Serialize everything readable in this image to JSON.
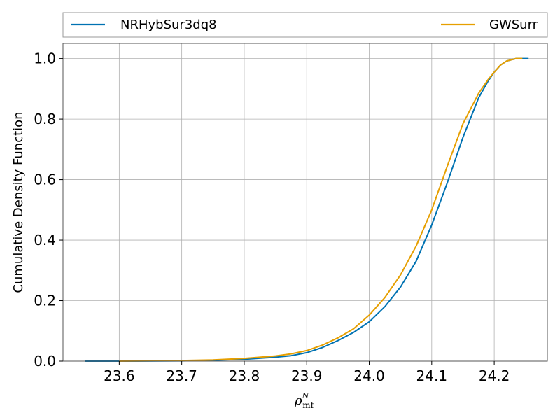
{
  "chart_data": {
    "type": "line",
    "title": "",
    "xlabel": {
      "base": "ρ",
      "sup": "N",
      "sub": "mf"
    },
    "ylabel": "Cumulative Density Function",
    "xlim": [
      23.51,
      24.285
    ],
    "ylim": [
      0.0,
      1.05
    ],
    "xticks": [
      23.6,
      23.7,
      23.8,
      23.9,
      24.0,
      24.1,
      24.2
    ],
    "xtick_labels": [
      "23.6",
      "23.7",
      "23.8",
      "23.9",
      "24.0",
      "24.1",
      "24.2"
    ],
    "yticks": [
      0.0,
      0.2,
      0.4,
      0.6,
      0.8,
      1.0
    ],
    "ytick_labels": [
      "0.0",
      "0.2",
      "0.4",
      "0.6",
      "0.8",
      "1.0"
    ],
    "grid": true,
    "legend_placement": "top, above plot",
    "series": [
      {
        "name": "NRHybSur3dq8",
        "color": "#0072b2",
        "x": [
          23.545,
          23.6,
          23.7,
          23.75,
          23.8,
          23.85,
          23.875,
          23.9,
          23.925,
          23.95,
          23.975,
          24.0,
          24.025,
          24.05,
          24.075,
          24.1,
          24.125,
          24.15,
          24.175,
          24.19,
          24.2,
          24.21,
          24.22,
          24.235,
          24.255
        ],
        "y": [
          0.0,
          0.0,
          0.001,
          0.003,
          0.006,
          0.013,
          0.018,
          0.028,
          0.045,
          0.068,
          0.095,
          0.13,
          0.18,
          0.245,
          0.33,
          0.45,
          0.59,
          0.74,
          0.87,
          0.925,
          0.955,
          0.978,
          0.992,
          1.0,
          1.0
        ]
      },
      {
        "name": "GWSurr",
        "color": "#e69f00",
        "x": [
          23.6,
          23.7,
          23.75,
          23.8,
          23.85,
          23.875,
          23.9,
          23.925,
          23.95,
          23.975,
          24.0,
          24.025,
          24.05,
          24.075,
          24.1,
          24.125,
          24.15,
          24.175,
          24.19,
          24.2,
          24.21,
          24.22,
          24.235,
          24.245
        ],
        "y": [
          0.0,
          0.002,
          0.004,
          0.009,
          0.017,
          0.024,
          0.035,
          0.053,
          0.077,
          0.107,
          0.152,
          0.21,
          0.285,
          0.38,
          0.5,
          0.645,
          0.785,
          0.885,
          0.93,
          0.955,
          0.978,
          0.992,
          1.0,
          1.0
        ]
      }
    ]
  }
}
